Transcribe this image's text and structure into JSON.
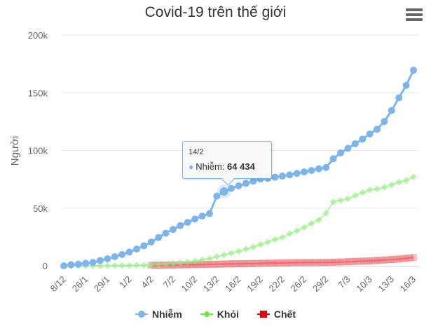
{
  "title": "Covid-19 trên thế giới",
  "menu_icon": "hamburger-menu-icon",
  "chart_data": {
    "type": "line",
    "title": "Covid-19 trên thế giới",
    "xlabel": "",
    "ylabel": "Người",
    "ylim": [
      0,
      200000
    ],
    "yticks": [
      "0",
      "50k",
      "100k",
      "150k",
      "200k"
    ],
    "grid": true,
    "legend_position": "bottom",
    "x_tick_labels": [
      "8/12",
      "26/1",
      "29/1",
      "1/2",
      "4/2",
      "7/2",
      "10/2",
      "13/2",
      "16/2",
      "19/2",
      "22/2",
      "26/2",
      "29/2",
      "7/3",
      "10/3",
      "13/3",
      "16/3"
    ],
    "categories": [
      "8/12",
      "24/1",
      "25/1",
      "26/1",
      "27/1",
      "28/1",
      "29/1",
      "30/1",
      "31/1",
      "1/2",
      "2/2",
      "3/2",
      "4/2",
      "5/2",
      "6/2",
      "7/2",
      "8/2",
      "9/2",
      "10/2",
      "11/2",
      "12/2",
      "13/2",
      "14/2",
      "15/2",
      "16/2",
      "17/2",
      "18/2",
      "19/2",
      "20/2",
      "21/2",
      "22/2",
      "24/2",
      "25/2",
      "26/2",
      "27/2",
      "28/2",
      "29/2",
      "3/3",
      "5/3",
      "7/3",
      "8/3",
      "9/3",
      "10/3",
      "11/3",
      "12/3",
      "13/3",
      "14/3",
      "15/3",
      "16/3"
    ],
    "series": [
      {
        "name": "Nhiễm",
        "color": "#7cb5ec",
        "marker": "circle",
        "values": [
          0,
          900,
          1400,
          2100,
          2900,
          4600,
          6100,
          7900,
          9800,
          11900,
          14500,
          17300,
          20600,
          24500,
          28300,
          31500,
          34900,
          37600,
          40600,
          43100,
          45200,
          60400,
          64434,
          67100,
          69300,
          71400,
          73300,
          75200,
          75700,
          76800,
          77800,
          78800,
          80100,
          81400,
          82600,
          84100,
          85200,
          92800,
          97900,
          101800,
          105800,
          109800,
          114200,
          118300,
          125100,
          134600,
          145600,
          156400,
          169500
        ]
      },
      {
        "name": "Khỏi",
        "color": "#90ed7d",
        "marker": "diamond",
        "values": [
          0,
          0,
          0,
          0,
          0,
          0,
          100,
          150,
          200,
          300,
          500,
          600,
          900,
          1200,
          1500,
          2000,
          2600,
          3300,
          4000,
          5100,
          6200,
          7900,
          9400,
          11000,
          12600,
          14500,
          16200,
          18300,
          20600,
          22900,
          24700,
          27900,
          30300,
          33300,
          36700,
          39800,
          45600,
          55400,
          56700,
          58100,
          60800,
          63500,
          65700,
          66600,
          68000,
          70100,
          72600,
          74000,
          77000
        ]
      },
      {
        "name": "Chết",
        "color": "#e7464a",
        "marker": "square",
        "values": [
          null,
          null,
          null,
          null,
          null,
          null,
          null,
          null,
          null,
          null,
          null,
          null,
          490,
          560,
          640,
          720,
          810,
          910,
          1020,
          1110,
          1260,
          1380,
          1520,
          1670,
          1770,
          1870,
          2010,
          2120,
          2250,
          2360,
          2460,
          2620,
          2700,
          2770,
          2800,
          2860,
          2940,
          3110,
          3280,
          3490,
          3830,
          4010,
          4290,
          4610,
          4980,
          5430,
          5820,
          6440,
          7160
        ]
      }
    ]
  },
  "tooltip": {
    "date": "14/2",
    "series_label": "Nhiễm: ",
    "value": "64 434"
  },
  "legend": [
    {
      "label": "Nhiễm",
      "color": "#7cb5ec"
    },
    {
      "label": "Khỏi",
      "color": "#66e63c"
    },
    {
      "label": "Chết",
      "color": "#e00000"
    }
  ]
}
